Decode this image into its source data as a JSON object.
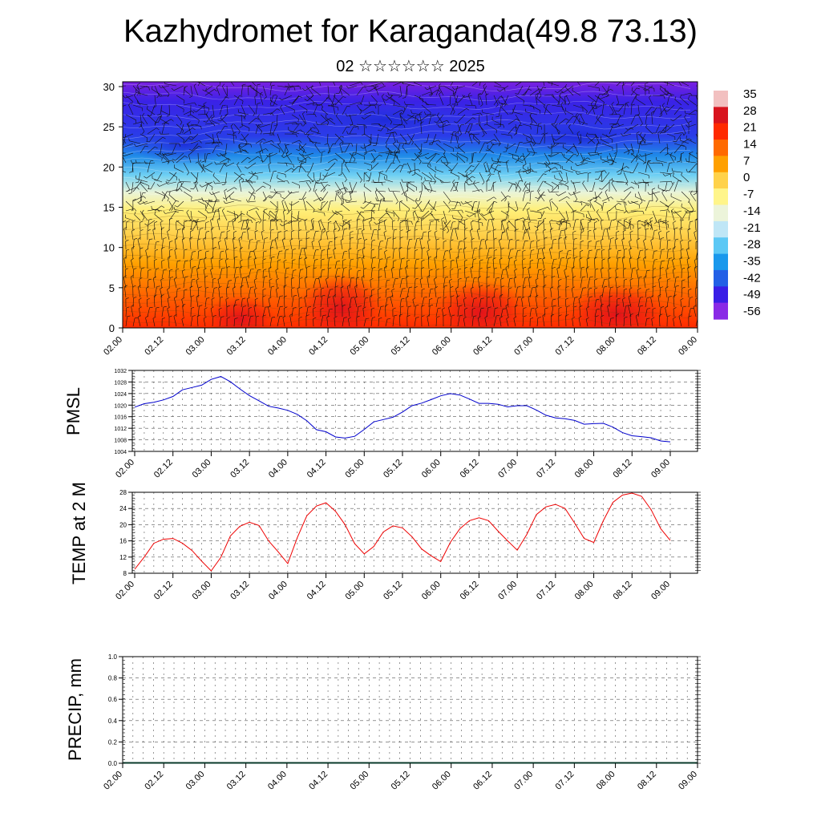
{
  "header": {
    "title": "Kazhydromet for Karaganda(49.8 73.13)",
    "subtitle": "02 ☆☆☆☆☆☆ 2025"
  },
  "chart_data": [
    {
      "type": "heatmap",
      "panel": "cross-section",
      "title": "",
      "xlabel": "",
      "ylabel": "",
      "x_ticks": [
        "02.00",
        "02.12",
        "03.00",
        "03.12",
        "04.00",
        "04.12",
        "05.00",
        "05.12",
        "06.00",
        "06.12",
        "07.00",
        "07.12",
        "08.00",
        "08.12",
        "09.00"
      ],
      "y_ticks": [
        0,
        5,
        10,
        15,
        20,
        25,
        30
      ],
      "ylim": [
        0,
        30.6
      ],
      "colorbar_labels": [
        "35",
        "28",
        "21",
        "14",
        "7",
        "0",
        "-7",
        "-14",
        "-21",
        "-28",
        "-35",
        "-42",
        "-49",
        "-56"
      ],
      "colorbar_colors": [
        "#f2c0c0",
        "#d8141e",
        "#ff2a00",
        "#ff6a00",
        "#ffa000",
        "#ffd24a",
        "#fff58a",
        "#ecf4da",
        "#bfe6f6",
        "#5cc8f5",
        "#1a98ec",
        "#2360e6",
        "#3a1ee6",
        "#8a2ae6"
      ],
      "wind_barbs": true
    },
    {
      "type": "line",
      "panel": "pmsl",
      "title": "",
      "ylabel": "PMSL",
      "ylim": [
        1004,
        1032
      ],
      "y_ticks": [
        1004,
        1008,
        1012,
        1016,
        1020,
        1024,
        1028,
        1032
      ],
      "x_ticks": [
        "02.00",
        "02.12",
        "03.00",
        "03.12",
        "04.00",
        "04.12",
        "05.00",
        "05.12",
        "06.00",
        "06.12",
        "07.00",
        "07.12",
        "08.00",
        "08.12",
        "09.00"
      ],
      "grid": true,
      "color": "#0000cc",
      "values": [
        1019.3,
        1020.5,
        1021.0,
        1021.8,
        1023.0,
        1025.3,
        1026.1,
        1026.9,
        1028.9,
        1029.9,
        1028.1,
        1025.6,
        1023.3,
        1021.5,
        1019.6,
        1019.0,
        1018.2,
        1016.8,
        1014.6,
        1011.5,
        1010.8,
        1009.0,
        1008.6,
        1009.2,
        1011.6,
        1014.2,
        1015.0,
        1015.8,
        1017.6,
        1019.8,
        1020.7,
        1021.9,
        1023.2,
        1024.0,
        1023.5,
        1022.1,
        1020.6,
        1020.6,
        1020.3,
        1019.4,
        1019.8,
        1019.8,
        1018.3,
        1016.5,
        1015.6,
        1015.3,
        1014.7,
        1013.4,
        1013.6,
        1013.7,
        1012.4,
        1010.5,
        1009.4,
        1009.1,
        1008.7,
        1007.6,
        1007.3
      ]
    },
    {
      "type": "line",
      "panel": "t2m",
      "title": "",
      "ylabel": "TEMP at 2 M",
      "ylim": [
        8,
        28
      ],
      "y_ticks": [
        8,
        12,
        16,
        20,
        24,
        28
      ],
      "x_ticks": [
        "02.00",
        "02.12",
        "03.00",
        "03.12",
        "04.00",
        "04.12",
        "05.00",
        "05.12",
        "06.00",
        "06.12",
        "07.00",
        "07.12",
        "08.00",
        "08.12",
        "09.00"
      ],
      "grid": true,
      "color": "#ee0000",
      "values": [
        9.0,
        12.0,
        15.4,
        16.4,
        16.6,
        15.4,
        13.6,
        11.0,
        8.6,
        11.9,
        17.2,
        19.6,
        20.6,
        19.8,
        16.0,
        13.3,
        10.4,
        16.8,
        22.2,
        24.6,
        25.4,
        23.3,
        20.0,
        15.3,
        12.8,
        14.6,
        18.2,
        19.7,
        19.2,
        17.0,
        14.0,
        12.3,
        10.9,
        15.6,
        19.0,
        21.0,
        21.7,
        21.0,
        18.4,
        16.0,
        13.7,
        17.6,
        22.5,
        24.4,
        25.0,
        24.0,
        20.4,
        16.6,
        15.6,
        21.0,
        25.5,
        27.3,
        27.8,
        27.0,
        23.7,
        19.0,
        16.1
      ]
    },
    {
      "type": "bar",
      "panel": "precip",
      "title": "",
      "ylabel": "PRECIP, mm",
      "ylim": [
        0,
        1.0
      ],
      "y_ticks": [
        "0.0",
        "0.2",
        "0.4",
        "0.6",
        "0.8",
        "1.0"
      ],
      "x_ticks": [
        "02.00",
        "02.12",
        "03.00",
        "03.12",
        "04.00",
        "04.12",
        "05.00",
        "05.12",
        "06.00",
        "06.12",
        "07.00",
        "07.12",
        "08.00",
        "08.12",
        "09.00"
      ],
      "grid": true,
      "values": []
    }
  ]
}
